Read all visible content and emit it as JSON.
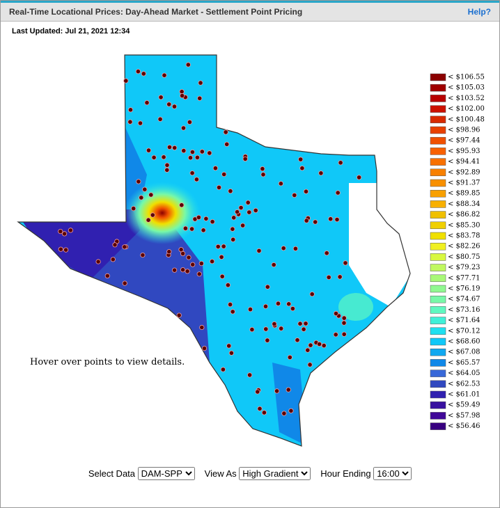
{
  "header": {
    "title": "Real-Time Locational Prices: Day-Ahead Market - Settlement Point Pricing",
    "help": "Help?"
  },
  "last_updated": "Last Updated: Jul 21, 2021 12:34",
  "map": {
    "hint": "Hover over points to view details.",
    "legend": [
      {
        "label": "< $106.55",
        "color": "#8b0000"
      },
      {
        "label": "< $105.03",
        "color": "#a00000"
      },
      {
        "label": "< $103.52",
        "color": "#b80000"
      },
      {
        "label": "< $102.00",
        "color": "#cc1100"
      },
      {
        "label": "< $100.48",
        "color": "#d82a00"
      },
      {
        "label": "< $98.96",
        "color": "#e84000"
      },
      {
        "label": "< $97.44",
        "color": "#f05000"
      },
      {
        "label": "< $95.93",
        "color": "#f86000"
      },
      {
        "label": "< $94.41",
        "color": "#f87000"
      },
      {
        "label": "< $92.89",
        "color": "#f88000"
      },
      {
        "label": "< $91.37",
        "color": "#f89000"
      },
      {
        "label": "< $89.85",
        "color": "#f8a000"
      },
      {
        "label": "< $88.34",
        "color": "#f8b000"
      },
      {
        "label": "< $86.82",
        "color": "#f0c000"
      },
      {
        "label": "< $85.30",
        "color": "#f0d000"
      },
      {
        "label": "< $83.78",
        "color": "#f0e000"
      },
      {
        "label": "< $82.26",
        "color": "#f0f020"
      },
      {
        "label": "< $80.75",
        "color": "#d8f840"
      },
      {
        "label": "< $79.23",
        "color": "#c0f860"
      },
      {
        "label": "< $77.71",
        "color": "#a8f878"
      },
      {
        "label": "< $76.19",
        "color": "#90f890"
      },
      {
        "label": "< $74.67",
        "color": "#78f8a8"
      },
      {
        "label": "< $73.16",
        "color": "#60f8c0"
      },
      {
        "label": "< $71.64",
        "color": "#40f0d8"
      },
      {
        "label": "< $70.12",
        "color": "#20e0f0"
      },
      {
        "label": "< $68.60",
        "color": "#10c8f8"
      },
      {
        "label": "< $67.08",
        "color": "#10a8f0"
      },
      {
        "label": "< $65.57",
        "color": "#1088e8"
      },
      {
        "label": "< $64.05",
        "color": "#3868d8"
      },
      {
        "label": "< $62.53",
        "color": "#3048c0"
      },
      {
        "label": "< $61.01",
        "color": "#3020b0"
      },
      {
        "label": "< $59.49",
        "color": "#3810a0"
      },
      {
        "label": "< $57.98",
        "color": "#400898"
      },
      {
        "label": "< $56.46",
        "color": "#380080"
      }
    ]
  },
  "controls": [
    {
      "label": "Select Data",
      "value": "DAM-SPP"
    },
    {
      "label": "View As",
      "value": "High Gradient"
    },
    {
      "label": "Hour Ending",
      "value": "16:00"
    }
  ]
}
